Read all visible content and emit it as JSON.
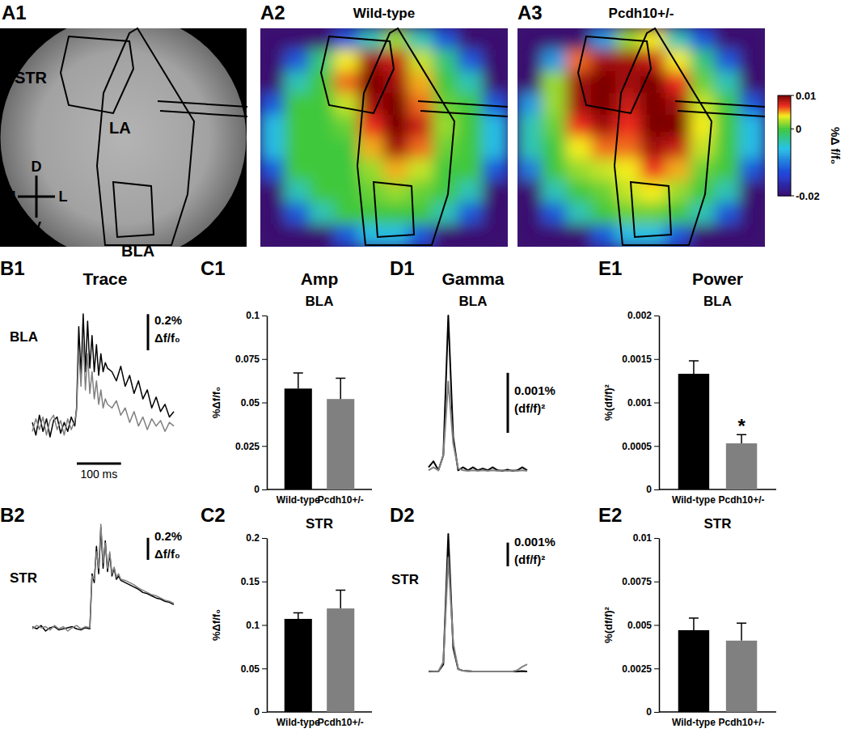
{
  "chart_data": [
    {
      "type": "image",
      "panel": "A1",
      "annotations": [
        "STR",
        "LA",
        "BLA",
        "D",
        "M",
        "L",
        "V"
      ]
    },
    {
      "type": "heatmap",
      "panel": "A2",
      "title": "Wild-type",
      "color_range": [
        -0.02,
        0.01
      ],
      "cells": [
        [
          -0.02,
          -0.02,
          -0.02,
          -0.012,
          -0.004,
          0.002,
          -0.004,
          -0.012,
          -0.02,
          -0.02
        ],
        [
          -0.02,
          -0.012,
          -0.002,
          0.004,
          0.009,
          0.008,
          0.003,
          -0.002,
          -0.012,
          -0.02
        ],
        [
          -0.02,
          -0.004,
          0.0,
          0.006,
          0.01,
          0.009,
          0.005,
          0.0,
          -0.004,
          -0.02
        ],
        [
          -0.012,
          0.0,
          0.0,
          0.003,
          0.009,
          0.01,
          0.006,
          0.001,
          0.0,
          -0.012
        ],
        [
          -0.006,
          0.0,
          0.0,
          0.001,
          0.007,
          0.01,
          0.008,
          0.002,
          0.0,
          -0.006
        ],
        [
          -0.006,
          0.0,
          0.0,
          0.0,
          0.005,
          0.009,
          0.006,
          0.001,
          0.0,
          -0.006
        ],
        [
          -0.012,
          0.0,
          0.0,
          0.0,
          0.002,
          0.005,
          0.003,
          0.0,
          0.0,
          -0.012
        ],
        [
          -0.02,
          -0.004,
          0.0,
          0.0,
          0.001,
          0.002,
          0.001,
          0.0,
          -0.004,
          -0.02
        ],
        [
          -0.02,
          -0.012,
          -0.004,
          0.0,
          0.0,
          0.0,
          0.0,
          -0.004,
          -0.012,
          -0.02
        ],
        [
          -0.02,
          -0.02,
          -0.02,
          -0.012,
          -0.006,
          -0.006,
          -0.012,
          -0.02,
          -0.02,
          -0.02
        ]
      ]
    },
    {
      "type": "heatmap",
      "panel": "A3",
      "title": "Pcdh10+/-",
      "color_range": [
        -0.02,
        0.01
      ],
      "color_ticks": [
        0.01,
        0,
        -0.02
      ],
      "color_label": "%Δ f/f₀",
      "cells": [
        [
          -0.02,
          -0.02,
          -0.02,
          -0.008,
          0.002,
          0.004,
          -0.004,
          -0.012,
          -0.02,
          -0.02
        ],
        [
          -0.02,
          -0.008,
          0.006,
          0.009,
          0.009,
          0.008,
          0.004,
          -0.002,
          -0.012,
          -0.02
        ],
        [
          -0.02,
          0.002,
          0.009,
          0.01,
          0.009,
          0.01,
          0.007,
          0.001,
          -0.004,
          -0.02
        ],
        [
          -0.008,
          0.002,
          0.009,
          0.01,
          0.008,
          0.01,
          0.009,
          0.003,
          0.0,
          -0.012
        ],
        [
          -0.004,
          0.001,
          0.007,
          0.009,
          0.007,
          0.01,
          0.01,
          0.004,
          0.0,
          -0.006
        ],
        [
          -0.004,
          0.0,
          0.004,
          0.006,
          0.006,
          0.009,
          0.008,
          0.003,
          0.0,
          -0.006
        ],
        [
          -0.01,
          0.0,
          0.002,
          0.003,
          0.004,
          0.007,
          0.005,
          0.001,
          0.0,
          -0.012
        ],
        [
          -0.02,
          -0.004,
          0.0,
          0.001,
          0.003,
          0.004,
          0.002,
          0.0,
          -0.004,
          -0.02
        ],
        [
          -0.02,
          -0.012,
          -0.004,
          0.0,
          0.001,
          0.001,
          0.0,
          -0.004,
          -0.012,
          -0.02
        ],
        [
          -0.02,
          -0.02,
          -0.02,
          -0.012,
          -0.006,
          -0.006,
          -0.012,
          -0.02,
          -0.02,
          -0.02
        ]
      ]
    },
    {
      "type": "line",
      "panel": "B1",
      "title": "Trace",
      "subtitle": "BLA",
      "tick_labels": false,
      "x": [
        0,
        8,
        16,
        24,
        32,
        40,
        48,
        56,
        64,
        72,
        80,
        88,
        96,
        100,
        105,
        110,
        115,
        120,
        125,
        130,
        135,
        140,
        145,
        150,
        155,
        160,
        165,
        170,
        180,
        190,
        200,
        210,
        220,
        230,
        240,
        250,
        260,
        270,
        280,
        290,
        300,
        310,
        320
      ],
      "series": [
        {
          "color": "#000000",
          "values": [
            0.02,
            -0.05,
            0.06,
            -0.03,
            0.04,
            -0.06,
            0.03,
            0.05,
            -0.04,
            0.02,
            -0.03,
            0.05,
            0.0,
            0.1,
            0.55,
            0.28,
            0.62,
            0.3,
            0.58,
            0.32,
            0.5,
            0.3,
            0.45,
            0.28,
            0.4,
            0.3,
            0.35,
            0.32,
            0.3,
            0.25,
            0.33,
            0.22,
            0.28,
            0.18,
            0.25,
            0.15,
            0.2,
            0.1,
            0.16,
            0.08,
            0.12,
            0.05,
            0.08
          ]
        },
        {
          "color": "#808080",
          "values": [
            -0.03,
            0.04,
            -0.02,
            0.05,
            -0.05,
            0.03,
            0.06,
            -0.02,
            0.03,
            -0.05,
            0.04,
            -0.02,
            0.03,
            0.08,
            0.42,
            0.22,
            0.48,
            0.2,
            0.4,
            0.18,
            0.3,
            0.15,
            0.25,
            0.12,
            0.2,
            0.1,
            0.15,
            0.12,
            0.1,
            0.14,
            0.06,
            0.1,
            0.02,
            0.08,
            0.0,
            0.05,
            -0.02,
            0.04,
            0.0,
            0.03,
            -0.03,
            0.02,
            0.0
          ]
        }
      ],
      "scale_bar": {
        "y": 0.2,
        "y_label": [
          "0.2%",
          "Δf/f₀"
        ],
        "x": 100,
        "x_label": "100 ms"
      }
    },
    {
      "type": "line",
      "panel": "B2",
      "subtitle": "STR",
      "tick_labels": false,
      "x": [
        0,
        10,
        20,
        30,
        40,
        50,
        60,
        70,
        80,
        90,
        100,
        110,
        120,
        130,
        135,
        140,
        145,
        150,
        155,
        160,
        165,
        170,
        175,
        180,
        185,
        190,
        195,
        200,
        210,
        220,
        230,
        240,
        250,
        260,
        270,
        280,
        290,
        300,
        310,
        320
      ],
      "series": [
        {
          "color": "#000000",
          "values": [
            0.02,
            0.0,
            0.03,
            -0.02,
            0.01,
            0.02,
            -0.01,
            0.0,
            0.01,
            0.02,
            0.0,
            -0.01,
            0.01,
            0.0,
            0.5,
            0.42,
            0.75,
            0.5,
            0.92,
            0.55,
            0.8,
            0.52,
            0.68,
            0.48,
            0.55,
            0.45,
            0.48,
            0.44,
            0.42,
            0.4,
            0.38,
            0.36,
            0.33,
            0.32,
            0.3,
            0.28,
            0.27,
            0.25,
            0.24,
            0.22
          ]
        },
        {
          "color": "#808080",
          "values": [
            0.0,
            0.03,
            0.01,
            0.02,
            -0.01,
            0.03,
            0.0,
            0.02,
            -0.02,
            0.01,
            0.03,
            0.0,
            0.02,
            0.01,
            0.48,
            0.45,
            0.7,
            0.55,
            0.95,
            0.6,
            0.78,
            0.55,
            0.7,
            0.5,
            0.56,
            0.47,
            0.5,
            0.45,
            0.44,
            0.42,
            0.4,
            0.37,
            0.35,
            0.33,
            0.31,
            0.3,
            0.28,
            0.26,
            0.25,
            0.23
          ]
        }
      ],
      "scale_bar": {
        "y": 0.2,
        "y_label": [
          "0.2%",
          "Δf/f₀"
        ]
      }
    },
    {
      "type": "bar",
      "panel": "C1",
      "title": "Amp",
      "subtitle": "BLA",
      "y_label": "%Δf/f₀",
      "categories": [
        "Wild-type",
        "Pcdh10+/-"
      ],
      "values": [
        0.058,
        0.052
      ],
      "errors": [
        0.009,
        0.012
      ],
      "colors": [
        "#000000",
        "#808080"
      ],
      "ylim": [
        0,
        0.1
      ],
      "yticks": [
        0,
        0.025,
        0.05,
        0.075,
        0.1
      ]
    },
    {
      "type": "bar",
      "panel": "C2",
      "subtitle": "STR",
      "y_label": "%Δf/f₀",
      "categories": [
        "Wild-type",
        "Pcdh10+/-"
      ],
      "values": [
        0.107,
        0.119
      ],
      "errors": [
        0.007,
        0.021
      ],
      "colors": [
        "#000000",
        "#808080"
      ],
      "ylim": [
        0,
        0.2
      ],
      "yticks": [
        0,
        0.05,
        0.1,
        0.15,
        0.2
      ]
    },
    {
      "type": "line",
      "panel": "D1",
      "title": "Gamma",
      "subtitle": "BLA",
      "tick_labels": false,
      "x": [
        0,
        5,
        10,
        15,
        20,
        25,
        30,
        35,
        40,
        45,
        50,
        55,
        60,
        65,
        70,
        75,
        80,
        85,
        90,
        95,
        100
      ],
      "series": [
        {
          "color": "#000000",
          "values": [
            0.0001,
            0.0002,
            5e-05,
            0.0003,
            0.00263,
            0.0006,
            5e-05,
            0.0001,
            5e-05,
            0.0001,
            5e-05,
            8e-05,
            5e-05,
            0.0001,
            5e-05,
            4e-05,
            6e-05,
            4e-05,
            5e-05,
            0.0001,
            5e-05
          ]
        },
        {
          "color": "#808080",
          "values": [
            5e-05,
            0.0001,
            5e-05,
            0.0003,
            0.00153,
            0.0005,
            8e-05,
            5e-05,
            4e-05,
            5e-05,
            4e-05,
            5e-05,
            4e-05,
            5e-05,
            4e-05,
            5e-05,
            4e-05,
            5e-05,
            4e-05,
            5e-05,
            4e-05
          ]
        }
      ],
      "scale_bar": {
        "y": 0.001,
        "y_label": [
          "0.001%",
          "(df/f)²"
        ]
      }
    },
    {
      "type": "line",
      "panel": "D2",
      "subtitle": "STR",
      "tick_labels": false,
      "x": [
        0,
        5,
        10,
        15,
        20,
        25,
        30,
        35,
        40,
        45,
        50,
        55,
        60,
        65,
        70,
        75,
        80,
        85,
        90,
        95,
        100
      ],
      "series": [
        {
          "color": "#000000",
          "values": [
            0,
            0,
            0,
            0.0003,
            0.0058,
            0.001,
            0.0001,
            3e-05,
            2e-05,
            0,
            0,
            0,
            0,
            0,
            0,
            0,
            0,
            0,
            0,
            2e-05,
            0
          ]
        },
        {
          "color": "#808080",
          "values": [
            2e-05,
            1e-05,
            1e-05,
            0.0004,
            0.0048,
            0.0012,
            0.0001,
            3e-05,
            2e-05,
            0,
            0,
            0,
            0,
            0,
            0,
            0,
            0,
            0,
            5e-05,
            0.0002,
            0.0003
          ]
        }
      ],
      "scale_bar": {
        "y": 0.001,
        "y_label": [
          "0.001%",
          "(df/f)²"
        ]
      }
    },
    {
      "type": "bar",
      "panel": "E1",
      "title": "Power",
      "subtitle": "BLA",
      "y_label": "%(df/f)²",
      "categories": [
        "Wild-type",
        "Pcdh10+/-"
      ],
      "values": [
        0.00133,
        0.00053
      ],
      "errors": [
        0.00015,
        0.0001
      ],
      "colors": [
        "#000000",
        "#808080"
      ],
      "ylim": [
        0,
        0.002
      ],
      "yticks": [
        0,
        0.0005,
        0.001,
        0.0015,
        0.002
      ],
      "annotations": [
        {
          "text": "*",
          "index": 1
        }
      ]
    },
    {
      "type": "bar",
      "panel": "E2",
      "subtitle": "STR",
      "y_label": "%(df/f)²",
      "categories": [
        "Wild-type",
        "Pcdh10+/-"
      ],
      "values": [
        0.0047,
        0.0041
      ],
      "errors": [
        0.0007,
        0.001
      ],
      "colors": [
        "#000000",
        "#808080"
      ],
      "ylim": [
        0,
        0.01
      ],
      "yticks": [
        0,
        0.0025,
        0.005,
        0.0075,
        0.01
      ]
    }
  ]
}
